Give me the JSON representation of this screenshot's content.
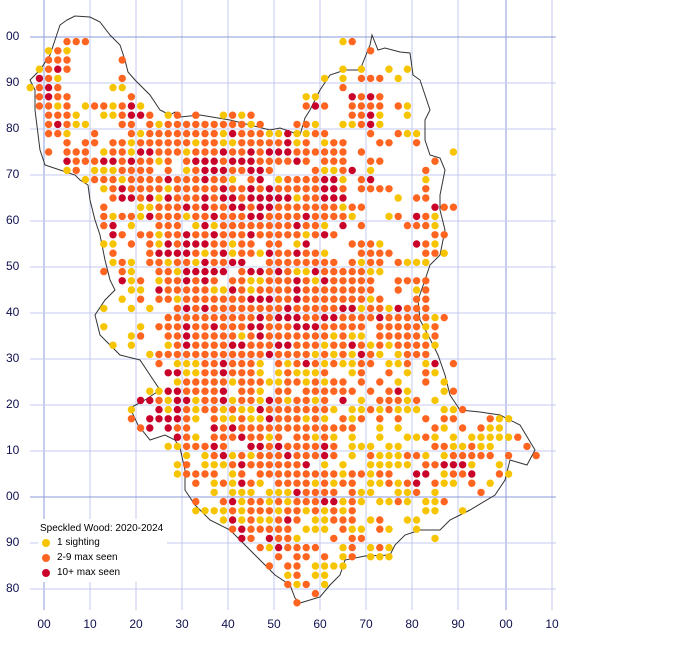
{
  "legend": {
    "title": "Speckled Wood:  2020-2024",
    "items": [
      {
        "label": "1 sighting",
        "key": "y",
        "color": "#F7C400"
      },
      {
        "label": "2-9 max seen",
        "key": "o",
        "color": "#FF6420"
      },
      {
        "label": "10+ max seen",
        "key": "r",
        "color": "#C8002A"
      }
    ]
  },
  "axes": {
    "y_labels": [
      "00",
      "90",
      "80",
      "70",
      "60",
      "50",
      "40",
      "30",
      "20",
      "10",
      "00",
      "90",
      "80"
    ],
    "x_labels": [
      "00",
      "10",
      "20",
      "30",
      "40",
      "50",
      "60",
      "70",
      "80",
      "90",
      "00",
      "10"
    ]
  },
  "colors": {
    "grid": "#C3CBEF",
    "grid_major": "#8C98D8",
    "outline": "#333333"
  },
  "chart_data": {
    "type": "heatmap",
    "description_key": "tetrad grid rows from north to south; y = 1 sighting, o = 2-9 max seen, r = 10+ max seen, . = no record",
    "rows": [
      "....ooo...........................yo",
      "..yoy................................o",
      "..ooo.....o",
      ".yoro.............................y.y..y.y",
      ".roy......o.....................y.y.ooo.y",
      "yoro.....yy.......................o",
      ".oroo......o..................yy...roro.",
      ".ooyo.yooyory.................oro..oooo.oy",
      "..oooy..yyorro.yo.o..yoyo..........oory..y",
      "..oroyy...oo.oyoooooooooyo...ooy..yyory.",
      "..ooy..o...oyooooooooyroooyyryyoo....o..oyy",
      "....o.oo.ooyooooooyooyyoooooryo.yoo...oo..o",
      "..o.ooo.yooyrroooyoooroororrroooooo.o.........y",
      "....rooorrorooyo.orrrorrrooooro.ooo..oo.....o",
      "....yo.yyyoooo.o.yorrroorro....oyyor.y.....o",
      "......yoooyoooorooorooy.or.yoooorry.or.....y",
      "........yorooooyoooooroororooooorro.oooo...o",
      ".........orroryrooororrorrrrryoorrr.....y.oo",
      "........o...yyooororoorrorroooooooyoo.......roo",
      "........oyooyroooyoorooorroooorooooy...yo.roy",
      "........or.y..ooo.yryoooooooorooy.r.o....oooy",
      ".........ro.ooyoorooroooroooooyoro..........oo",
      "........yy.o.oyrorrrooyoo.oo.yr....oooy...roy",
      ".........o...orrrroyoryooyroorooy...oooo...ooy",
      ".........yoy.ooyooyroorr..oooooooo.oyoo.oyyy",
      "........o.oy..ooyrrrrr.orroroyyroooooyy",
      "..........ryo.yoororo.ooyyoooroyrooooo..oooo",
      "...........yy.roooooyyroyooooroooooooo..o.yo",
      "..........y.o.ooyooooooorrrooroooooooyo...oo",
      "........y..y.y..ororoooooooorooooorryooyrooo",
      "...............oooooooooororrroorrooooroooooyo",
      "........y...y.oooroorooorrooorrrooooo.oooooyo",
      "...........yo..ooroooooyoroooooooyoyy.oooooyo",
      ".........y.y...yoroooorrooorroooyooroyoyooooy",
      ".............yoooooooooooorooooyoyoyroy.yooo",
      "..............o.yyyooroooy.oyoroyoyyoo.yyo.yr.o",
      "...............rryyooroooy.yoyyyo..yo..o.y.oy",
      "................yoooooyoooyyooyoyoo.o.o.y..o.y",
      ".............yyrroooor.ooy.oo.oooooo.o.ory...yo",
      "............rroyrryooryooyroyooyo.r.y.oooyo.y",
      "...........y..ryroyooyoyyroooooooy.yyoyoyyy..yyo",
      "...........o.rrrroy.oyyoyyroooyoy.oyo.o.o..o.oo...oyy",
      "............or.roo..rorooooooooooooo..y.y...oy.o.oyy",
      "................roy.ooorooyo.ooyoy.y..y..yyoy.y.yyyyyo",
      "...............yyoooro..rrorooooro.yyy.yy...ooyyoyy...o",
      ".................y.yoryoyoooroooro.y.oyyyooy.yooooo.o..o",
      "................yo.yyyoroooooor.y.y..yyyyy.oorrry..y",
      "................yoooo.yo.oooooooooyooyoo..rr.yoor..oy",
      "..................o.yoyroy.ooooyoyoo.yyoyor.oyy.o.y",
      "....................y.yyy.yyyroooo.oyy..yyo.y....o",
      "..................o..oryooyoyooorryoy.yyoy.yyo",
      "..................yyyyoyoooyooyoyoyo.......yy..y",
      ".....................yryoyyoro.yyooo.yo..yy",
      "......................orooooo.yyy.oyy.oy..y",
      ".......................ro.rooy...o.oo.......y",
      ".........................oyroooo..yo.yoy",
      "...........................o.oo.o.yo.yyy",
      "..........................o.oo.yyyy",
      "............................yo.yy",
      "............................oyo.y",
      "...............................o",
      ".............................o"
    ]
  }
}
